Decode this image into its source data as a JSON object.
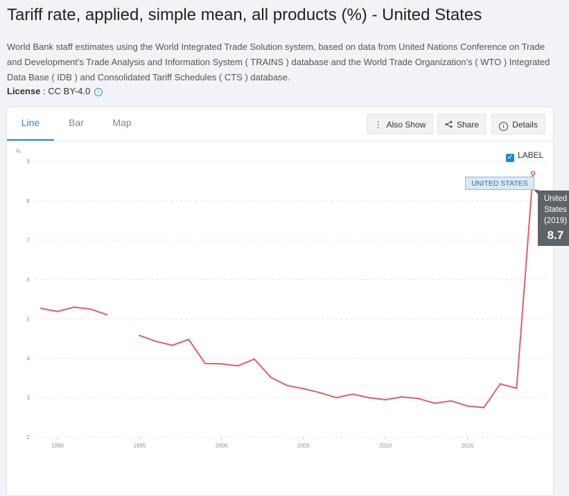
{
  "page": {
    "title": "Tariff rate, applied, simple mean, all products (%) - United States",
    "description": "World Bank staff estimates using the World Integrated Trade Solution system, based on data from United Nations Conference on Trade and Development's Trade Analysis and Information System ( TRAINS ) database and the World Trade Organization’s ( WTO ) Integrated Data Base ( IDB ) and Consolidated Tariff Schedules ( CTS ) database.",
    "license_label": "License",
    "license_value": " : CC BY-4.0",
    "info_icon": "info-icon"
  },
  "tabs": [
    "Line",
    "Bar",
    "Map"
  ],
  "toolbar": {
    "also_show": "Also Show",
    "share": "Share",
    "details": "Details"
  },
  "label_toggle": {
    "text": "LABEL",
    "checked": true
  },
  "series_label": "UNITED STATES",
  "tooltip": {
    "line1": "United",
    "line2": "States",
    "line3": "(2019)",
    "value": "8.7"
  },
  "colors": {
    "line": "#e35d68",
    "accent": "#1f8ad1",
    "grid": "#e3e5e9"
  },
  "chart_data": {
    "type": "line",
    "title": "",
    "xlabel": "",
    "ylabel": "%",
    "xlim": [
      1988.6,
      2019.8
    ],
    "ylim": [
      2,
      9
    ],
    "y_ticks": [
      2,
      3,
      4,
      5,
      6,
      7,
      8,
      9
    ],
    "x_ticks": [
      1990,
      1995,
      2000,
      2005,
      2010,
      2015
    ],
    "grid": true,
    "series": [
      {
        "name": "UNITED STATES",
        "segments": [
          [
            [
              1989,
              5.27
            ],
            [
              1990,
              5.19
            ],
            [
              1991,
              5.3
            ],
            [
              1992,
              5.25
            ],
            [
              1993,
              5.11
            ]
          ],
          [
            [
              1995,
              4.58
            ],
            [
              1996,
              4.43
            ],
            [
              1997,
              4.33
            ],
            [
              1998,
              4.48
            ],
            [
              1999,
              3.87
            ],
            [
              2000,
              3.86
            ],
            [
              2001,
              3.81
            ],
            [
              2002,
              3.98
            ],
            [
              2003,
              3.52
            ],
            [
              2004,
              3.31
            ],
            [
              2005,
              3.23
            ],
            [
              2006,
              3.13
            ],
            [
              2007,
              3.0
            ],
            [
              2008,
              3.09
            ],
            [
              2009,
              3.0
            ],
            [
              2010,
              2.95
            ],
            [
              2011,
              3.02
            ],
            [
              2012,
              2.98
            ],
            [
              2013,
              2.86
            ],
            [
              2014,
              2.92
            ],
            [
              2015,
              2.79
            ],
            [
              2016,
              2.75
            ],
            [
              2017,
              3.35
            ],
            [
              2018,
              3.24
            ],
            [
              2019,
              8.7
            ]
          ]
        ]
      }
    ]
  }
}
